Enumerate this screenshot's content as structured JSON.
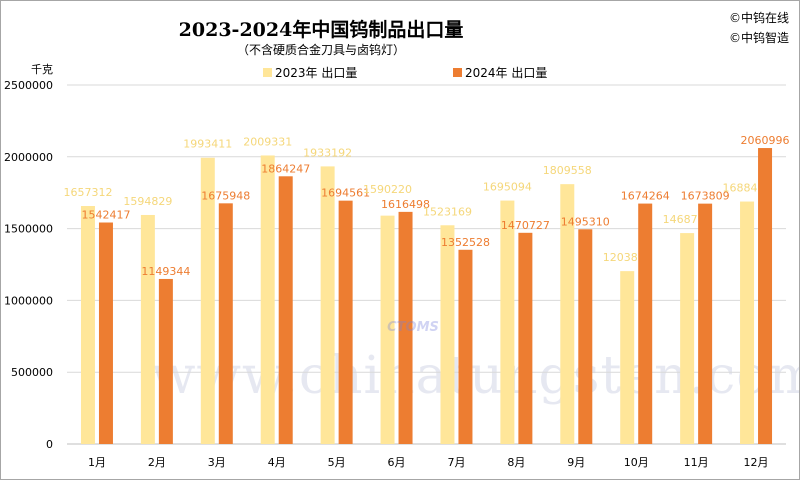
{
  "chart_data": {
    "type": "bar",
    "title": "2023-2024年中国钨制品出口量",
    "subtitle": "（不含硬质合金刀具与卤钨灯）",
    "ylabel": "千克",
    "xlabel": "",
    "ylim": [
      0,
      2500000
    ],
    "yticks": [
      "0",
      "500000",
      "1000000",
      "1500000",
      "2000000",
      "2500000"
    ],
    "grid": true,
    "legend_placement": "top",
    "categories": [
      "1月",
      "2月",
      "3月",
      "4月",
      "5月",
      "6月",
      "7月",
      "8月",
      "9月",
      "10月",
      "11月",
      "12月"
    ],
    "series": [
      {
        "name": "2023年 出口量",
        "color": "#FFE699",
        "label_color": "#F5D77A",
        "values": [
          1657312,
          1594829,
          1993411,
          2009331,
          1933192,
          1590220,
          1523169,
          1695094,
          1809558,
          1203808,
          1468719,
          1688437
        ]
      },
      {
        "name": "2024年 出口量",
        "color": "#ED7D31",
        "label_color": "#ED7D31",
        "values": [
          1542417,
          1149344,
          1675948,
          1864247,
          1694561,
          1616498,
          1352528,
          1470727,
          1495310,
          1674264,
          1673809,
          2060996
        ]
      }
    ]
  },
  "watermarks": [
    "©中钨在线",
    "©中钨智造"
  ],
  "background_watermark": "www.chinatungsten.com",
  "logo_text": "CTOMS"
}
